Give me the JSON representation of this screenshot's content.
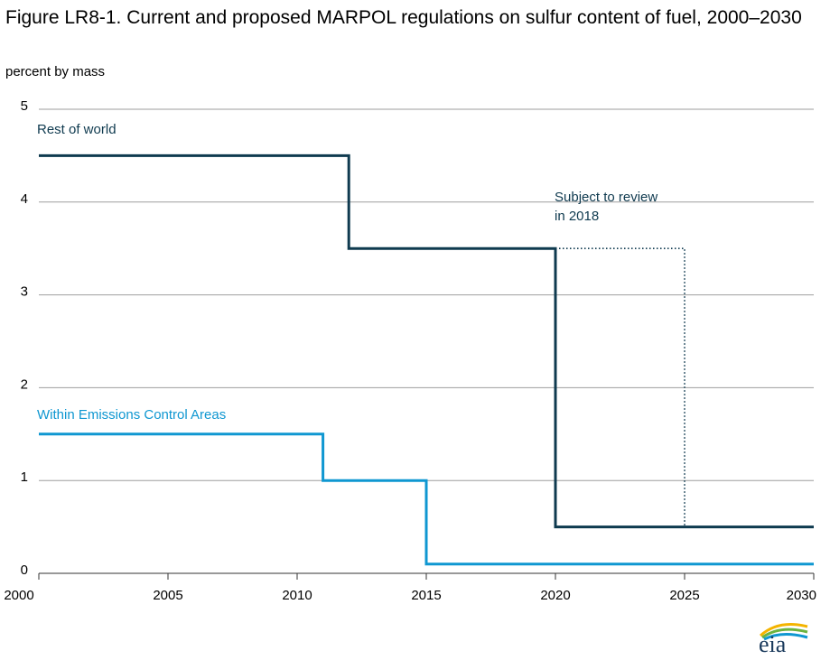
{
  "title": "Figure LR8-1. Current and proposed MARPOL regulations on sulfur content of fuel, 2000–2030",
  "units_label": "percent by mass",
  "logo_text": "eia",
  "colors": {
    "rest_of_world": "#0f3a4f",
    "eca": "#0f97d1",
    "grid": "#9e9e9e",
    "axis": "#333333"
  },
  "chart_data": {
    "type": "line",
    "step": true,
    "xlim": [
      2000,
      2030
    ],
    "ylim": [
      0,
      5
    ],
    "xticks": [
      2000,
      2005,
      2010,
      2015,
      2020,
      2025,
      2030
    ],
    "yticks": [
      0,
      1,
      2,
      3,
      4,
      5
    ],
    "grid": true,
    "series": [
      {
        "name": "Rest of world",
        "color": "#0f3a4f",
        "x": [
          2000,
          2012,
          2012,
          2020,
          2020,
          2030
        ],
        "y": [
          4.5,
          4.5,
          3.5,
          3.5,
          0.5,
          0.5
        ]
      },
      {
        "name": "Within Emissions Control Areas",
        "color": "#0f97d1",
        "x": [
          2000,
          2011,
          2011,
          2015,
          2015,
          2030
        ],
        "y": [
          1.5,
          1.5,
          1.0,
          1.0,
          0.1,
          0.1
        ]
      },
      {
        "name": "Subject to review in 2018",
        "color": "#0f3a4f",
        "dotted": true,
        "x": [
          2020,
          2025,
          2025
        ],
        "y": [
          3.5,
          3.5,
          0.5
        ]
      }
    ],
    "annotations": [
      {
        "text": "Subject to review",
        "x": 2020,
        "y": 3.95
      },
      {
        "text": "in 2018",
        "x": 2020,
        "y": 3.75
      }
    ]
  }
}
